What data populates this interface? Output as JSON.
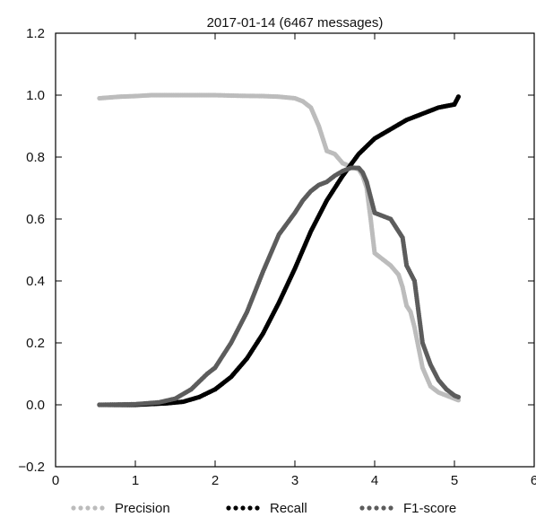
{
  "chart_data": {
    "type": "scatter",
    "title": "2017-01-14 (6467 messages)",
    "xlabel": "",
    "ylabel": "",
    "xlim": [
      0,
      6
    ],
    "ylim": [
      -0.2,
      1.2
    ],
    "x_ticks": [
      0,
      1,
      2,
      3,
      4,
      5,
      6
    ],
    "y_ticks": [
      -0.2,
      0.0,
      0.2,
      0.4,
      0.6,
      0.8,
      1.0,
      1.2
    ],
    "x_tick_labels": [
      "0",
      "1",
      "2",
      "3",
      "4",
      "5",
      "6"
    ],
    "y_tick_labels": [
      "−0.2",
      "0.0",
      "0.2",
      "0.4",
      "0.6",
      "0.8",
      "1.0",
      "1.2"
    ],
    "grid": false,
    "legend": "bottom",
    "series": [
      {
        "name": "Precision",
        "color": "#bcbcbc",
        "x": [
          0.55,
          0.8,
          1.0,
          1.2,
          1.5,
          1.8,
          2.0,
          2.3,
          2.6,
          2.8,
          3.0,
          3.1,
          3.2,
          3.25,
          3.3,
          3.35,
          3.4,
          3.5,
          3.6,
          3.7,
          3.8,
          3.85,
          3.9,
          3.95,
          4.0,
          4.1,
          4.2,
          4.3,
          4.35,
          4.4,
          4.45,
          4.5,
          4.6,
          4.7,
          4.8,
          4.9,
          5.0,
          5.05
        ],
        "y": [
          0.99,
          0.995,
          0.997,
          1.0,
          1.0,
          1.0,
          1.0,
          0.998,
          0.997,
          0.995,
          0.99,
          0.98,
          0.96,
          0.93,
          0.9,
          0.86,
          0.82,
          0.81,
          0.78,
          0.77,
          0.76,
          0.74,
          0.7,
          0.6,
          0.49,
          0.47,
          0.45,
          0.42,
          0.38,
          0.32,
          0.3,
          0.25,
          0.12,
          0.06,
          0.04,
          0.03,
          0.02,
          0.015
        ]
      },
      {
        "name": "Recall",
        "color": "#000000",
        "x": [
          0.55,
          1.0,
          1.4,
          1.6,
          1.8,
          2.0,
          2.2,
          2.4,
          2.6,
          2.8,
          3.0,
          3.2,
          3.4,
          3.6,
          3.8,
          4.0,
          4.2,
          4.4,
          4.6,
          4.8,
          5.0,
          5.05
        ],
        "y": [
          0.0,
          0.0,
          0.005,
          0.01,
          0.025,
          0.05,
          0.09,
          0.15,
          0.23,
          0.33,
          0.44,
          0.56,
          0.66,
          0.74,
          0.81,
          0.86,
          0.89,
          0.92,
          0.94,
          0.96,
          0.97,
          0.995
        ]
      },
      {
        "name": "F1-score",
        "color": "#5c5c5c",
        "x": [
          0.55,
          1.0,
          1.3,
          1.5,
          1.7,
          1.9,
          2.0,
          2.2,
          2.4,
          2.6,
          2.8,
          3.0,
          3.1,
          3.2,
          3.3,
          3.4,
          3.5,
          3.6,
          3.7,
          3.8,
          3.85,
          3.9,
          4.0,
          4.1,
          4.2,
          4.3,
          4.35,
          4.4,
          4.5,
          4.6,
          4.7,
          4.8,
          4.9,
          5.0,
          5.05
        ],
        "y": [
          0.0,
          0.002,
          0.008,
          0.02,
          0.05,
          0.1,
          0.12,
          0.2,
          0.3,
          0.43,
          0.55,
          0.62,
          0.66,
          0.69,
          0.71,
          0.72,
          0.74,
          0.755,
          0.765,
          0.765,
          0.75,
          0.72,
          0.62,
          0.61,
          0.6,
          0.56,
          0.54,
          0.45,
          0.4,
          0.2,
          0.13,
          0.08,
          0.05,
          0.03,
          0.025
        ]
      }
    ]
  }
}
